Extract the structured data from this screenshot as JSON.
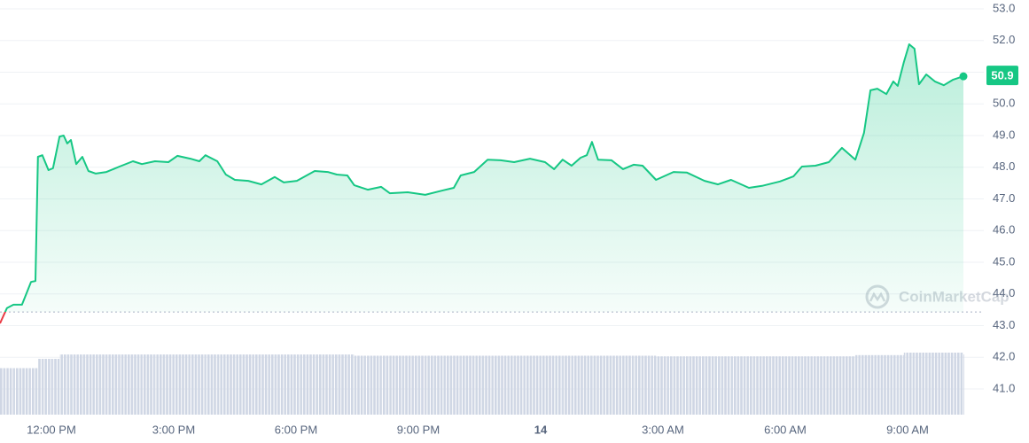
{
  "chart_data": {
    "type": "line",
    "color": "#16c784",
    "down_color": "#ea3943",
    "volume_color": "#cfd6e4",
    "grid": true,
    "watermark": "CoinMarketCap",
    "current_price": 50.9,
    "reference_price": 43.43,
    "x": [
      -1.26,
      -1.09,
      -0.93,
      -0.72,
      -0.5,
      -0.39,
      -0.33,
      -0.22,
      -0.07,
      0.04,
      0.2,
      0.3,
      0.39,
      0.48,
      0.61,
      0.76,
      0.91,
      1.09,
      1.35,
      1.67,
      2.0,
      2.22,
      2.54,
      2.87,
      3.09,
      3.41,
      3.63,
      3.78,
      4.07,
      4.28,
      4.5,
      4.83,
      5.15,
      5.48,
      5.7,
      6.02,
      6.46,
      6.78,
      7.0,
      7.26,
      7.43,
      7.76,
      8.09,
      8.3,
      8.74,
      9.17,
      9.61,
      9.87,
      10.04,
      10.37,
      10.7,
      11.02,
      11.35,
      11.74,
      12.11,
      12.33,
      12.54,
      12.76,
      12.98,
      13.13,
      13.26,
      13.41,
      13.74,
      14.02,
      14.28,
      14.5,
      14.83,
      15.26,
      15.59,
      16.02,
      16.35,
      16.67,
      17.11,
      17.43,
      17.87,
      18.2,
      18.41,
      18.74,
      19.07,
      19.39,
      19.72,
      19.93,
      20.09,
      20.26,
      20.48,
      20.65,
      20.76,
      20.91,
      21.04,
      21.17,
      21.28,
      21.46,
      21.67,
      21.89,
      22.11,
      22.37
    ],
    "values": [
      43.07,
      43.55,
      43.66,
      43.66,
      44.38,
      44.41,
      48.33,
      48.38,
      47.91,
      47.97,
      48.97,
      49.0,
      48.75,
      48.86,
      48.1,
      48.33,
      47.88,
      47.8,
      47.85,
      48.02,
      48.19,
      48.1,
      48.19,
      48.16,
      48.36,
      48.27,
      48.19,
      48.38,
      48.19,
      47.77,
      47.6,
      47.57,
      47.46,
      47.69,
      47.52,
      47.57,
      47.88,
      47.85,
      47.77,
      47.74,
      47.43,
      47.29,
      47.38,
      47.18,
      47.21,
      47.13,
      47.27,
      47.35,
      47.74,
      47.85,
      48.24,
      48.22,
      48.16,
      48.27,
      48.16,
      47.94,
      48.24,
      48.05,
      48.3,
      48.38,
      48.8,
      48.24,
      48.22,
      47.94,
      48.08,
      48.05,
      47.6,
      47.85,
      47.83,
      47.57,
      47.46,
      47.6,
      47.35,
      47.41,
      47.55,
      47.71,
      48.02,
      48.05,
      48.16,
      48.61,
      48.24,
      49.08,
      50.43,
      50.48,
      50.31,
      50.71,
      50.57,
      51.32,
      51.88,
      51.74,
      50.62,
      50.93,
      50.71,
      50.59,
      50.76,
      50.87
    ],
    "volume": [
      75,
      75,
      75,
      75,
      75,
      75,
      90,
      90,
      90,
      90,
      97,
      97,
      97,
      97,
      97,
      97,
      97,
      97,
      97,
      97,
      97,
      97,
      97,
      97,
      97,
      97,
      97,
      97,
      97,
      97,
      97,
      97,
      97,
      97,
      97,
      97,
      97,
      97,
      97,
      97,
      95,
      95,
      95,
      95,
      95,
      95,
      95,
      95,
      95,
      95,
      95,
      95,
      95,
      95,
      95,
      95,
      95,
      95,
      95,
      95,
      95,
      95,
      95,
      95,
      95,
      95,
      94,
      94,
      94,
      94,
      94,
      94,
      94,
      94,
      94,
      94,
      94,
      94,
      94,
      94,
      96,
      96,
      96,
      96,
      96,
      96,
      96,
      100,
      100,
      100,
      100,
      100,
      100,
      100,
      100,
      97
    ],
    "xlim": [
      -1.26,
      22.37
    ],
    "xticks": [
      {
        "value": 0,
        "label": "12:00 PM"
      },
      {
        "value": 3,
        "label": "3:00 PM"
      },
      {
        "value": 6,
        "label": "6:00 PM"
      },
      {
        "value": 9,
        "label": "9:00 PM"
      },
      {
        "value": 12,
        "label": "14"
      },
      {
        "value": 15,
        "label": "3:00 AM"
      },
      {
        "value": 18,
        "label": "6:00 AM"
      },
      {
        "value": 21,
        "label": "9:00 AM"
      }
    ],
    "ylim": [
      41,
      53
    ],
    "yticks": [
      {
        "value": 41,
        "label": "41.0"
      },
      {
        "value": 42,
        "label": "42.0"
      },
      {
        "value": 43,
        "label": "43.0"
      },
      {
        "value": 44,
        "label": "44.0"
      },
      {
        "value": 45,
        "label": "45.0"
      },
      {
        "value": 46,
        "label": "46.0"
      },
      {
        "value": 47,
        "label": "47.0"
      },
      {
        "value": 48,
        "label": "48.0"
      },
      {
        "value": 49,
        "label": "49.0"
      },
      {
        "value": 50,
        "label": "50.0"
      },
      {
        "value": 51,
        "label": "51.0"
      },
      {
        "value": 52,
        "label": "52.0"
      },
      {
        "value": 53,
        "label": "53.0"
      }
    ]
  }
}
